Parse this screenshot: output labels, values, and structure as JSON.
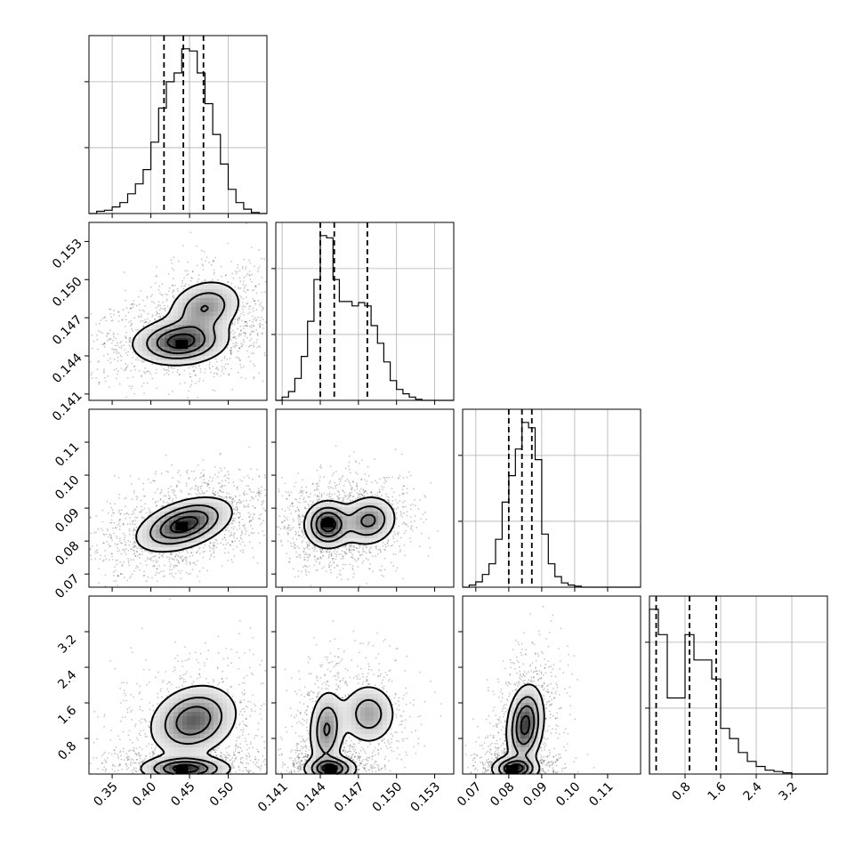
{
  "chart_data": {
    "type": "corner",
    "colors": {
      "line": "#000000",
      "grid": "#b0b0b0",
      "points": "#000000",
      "background": "#ffffff"
    },
    "grid": true,
    "parameters": [
      {
        "range": [
          0.32,
          0.55
        ],
        "ticks": [
          0.35,
          0.4,
          0.45,
          0.5
        ],
        "tick_labels": [
          "0.35",
          "0.40",
          "0.45",
          "0.50"
        ],
        "quantiles": [
          0.417,
          0.442,
          0.468
        ]
      },
      {
        "range": [
          0.1405,
          0.1545
        ],
        "ticks": [
          0.141,
          0.144,
          0.147,
          0.15,
          0.153
        ],
        "tick_labels": [
          "0.141",
          "0.144",
          "0.147",
          "0.150",
          "0.153"
        ],
        "quantiles": [
          0.144,
          0.1451,
          0.1477
        ]
      },
      {
        "range": [
          0.066,
          0.12
        ],
        "ticks": [
          0.07,
          0.08,
          0.09,
          0.1,
          0.11
        ],
        "tick_labels": [
          "0.07",
          "0.08",
          "0.09",
          "0.10",
          "0.11"
        ],
        "quantiles": [
          0.08,
          0.084,
          0.087
        ]
      },
      {
        "range": [
          0.0,
          4.0
        ],
        "ticks": [
          0.8,
          1.6,
          2.4,
          3.2
        ],
        "tick_labels": [
          "0.8",
          "1.6",
          "2.4",
          "3.2"
        ],
        "quantiles": [
          0.15,
          0.9,
          1.5
        ]
      }
    ],
    "histograms": [
      {
        "param": 0,
        "edges": [
          0.32,
          0.33,
          0.34,
          0.35,
          0.36,
          0.37,
          0.38,
          0.39,
          0.4,
          0.41,
          0.42,
          0.43,
          0.44,
          0.45,
          0.46,
          0.47,
          0.48,
          0.49,
          0.5,
          0.51,
          0.52,
          0.53,
          0.54,
          0.55
        ],
        "counts": [
          0,
          2,
          3,
          6,
          10,
          18,
          27,
          40,
          65,
          96,
          120,
          128,
          150,
          148,
          128,
          100,
          72,
          45,
          22,
          10,
          4,
          1,
          0
        ]
      },
      {
        "param": 1,
        "edges": [
          0.1405,
          0.141,
          0.1415,
          0.142,
          0.1425,
          0.143,
          0.1435,
          0.144,
          0.1445,
          0.145,
          0.1455,
          0.146,
          0.1465,
          0.147,
          0.1475,
          0.148,
          0.1485,
          0.149,
          0.1495,
          0.15,
          0.1505,
          0.151,
          0.1515,
          0.152,
          0.1525,
          0.153,
          0.1535,
          0.154,
          0.1545
        ],
        "counts": [
          0,
          3,
          8,
          20,
          40,
          72,
          110,
          150,
          148,
          110,
          90,
          90,
          86,
          89,
          86,
          68,
          52,
          35,
          18,
          10,
          6,
          3,
          1,
          0,
          0,
          0,
          0,
          0
        ]
      },
      {
        "param": 2,
        "edges": [
          0.066,
          0.068,
          0.07,
          0.072,
          0.074,
          0.076,
          0.078,
          0.08,
          0.082,
          0.084,
          0.086,
          0.088,
          0.09,
          0.092,
          0.094,
          0.096,
          0.098,
          0.1,
          0.102,
          0.104,
          0.106,
          0.108,
          0.11,
          0.112,
          0.114,
          0.116,
          0.118,
          0.12
        ],
        "counts": [
          0,
          2,
          5,
          12,
          22,
          45,
          80,
          105,
          130,
          155,
          150,
          120,
          50,
          22,
          10,
          4,
          2,
          1,
          0,
          0,
          0,
          0,
          0,
          0,
          0,
          0,
          0
        ]
      },
      {
        "param": 3,
        "edges": [
          0.0,
          0.2,
          0.4,
          0.6,
          0.8,
          1.0,
          1.2,
          1.4,
          1.6,
          1.8,
          2.0,
          2.2,
          2.4,
          2.6,
          2.8,
          3.0,
          3.2,
          3.4,
          3.6,
          3.8,
          4.0
        ],
        "counts": [
          130,
          110,
          60,
          60,
          110,
          90,
          90,
          75,
          36,
          28,
          17,
          10,
          6,
          3,
          2,
          1,
          0,
          0,
          0,
          0
        ]
      }
    ],
    "pairs": [
      {
        "x": 0,
        "y": 1,
        "modes": [
          {
            "mx": 0.438,
            "my": 0.1451,
            "sx": 0.03,
            "sy": 0.0009,
            "rho": 0.1,
            "w": 0.62
          },
          {
            "mx": 0.47,
            "my": 0.1478,
            "sx": 0.024,
            "sy": 0.0011,
            "rho": 0.2,
            "w": 0.38
          }
        ],
        "peak": {
          "x": 0.44,
          "y": 0.1449
        }
      },
      {
        "x": 0,
        "y": 2,
        "modes": [
          {
            "mx": 0.443,
            "my": 0.085,
            "sx": 0.03,
            "sy": 0.004,
            "rho": 0.45,
            "w": 1.0
          }
        ],
        "peak": {
          "x": 0.44,
          "y": 0.0845
        }
      },
      {
        "x": 1,
        "y": 2,
        "modes": [
          {
            "mx": 0.1446,
            "my": 0.085,
            "sx": 0.0009,
            "sy": 0.0035,
            "rho": 0.0,
            "w": 0.6
          },
          {
            "mx": 0.1478,
            "my": 0.0862,
            "sx": 0.0011,
            "sy": 0.0038,
            "rho": 0.1,
            "w": 0.4
          }
        ],
        "peak": {
          "x": 0.1446,
          "y": 0.0855
        }
      },
      {
        "x": 0,
        "y": 3,
        "modes": [
          {
            "mx": 0.445,
            "my": 0.12,
            "sx": 0.028,
            "sy": 0.14,
            "rho": 0.0,
            "w": 0.55
          },
          {
            "mx": 0.455,
            "my": 1.2,
            "sx": 0.028,
            "sy": 0.4,
            "rho": 0.2,
            "w": 0.45
          }
        ],
        "peak": {
          "x": 0.44,
          "y": 0.1
        }
      },
      {
        "x": 1,
        "y": 3,
        "modes": [
          {
            "mx": 0.1448,
            "my": 0.12,
            "sx": 0.001,
            "sy": 0.14,
            "rho": 0.0,
            "w": 0.45
          },
          {
            "mx": 0.1445,
            "my": 1.0,
            "sx": 0.0007,
            "sy": 0.45,
            "rho": 0.1,
            "w": 0.3
          },
          {
            "mx": 0.1478,
            "my": 1.35,
            "sx": 0.0011,
            "sy": 0.35,
            "rho": 0.0,
            "w": 0.25
          }
        ],
        "peak": {
          "x": 0.1448,
          "y": 0.1
        }
      },
      {
        "x": 2,
        "y": 3,
        "modes": [
          {
            "mx": 0.082,
            "my": 0.12,
            "sx": 0.0035,
            "sy": 0.14,
            "rho": 0.0,
            "w": 0.5
          },
          {
            "mx": 0.085,
            "my": 1.1,
            "sx": 0.0028,
            "sy": 0.45,
            "rho": 0.2,
            "w": 0.5
          }
        ],
        "peak": {
          "x": 0.081,
          "y": 0.1
        }
      }
    ]
  }
}
